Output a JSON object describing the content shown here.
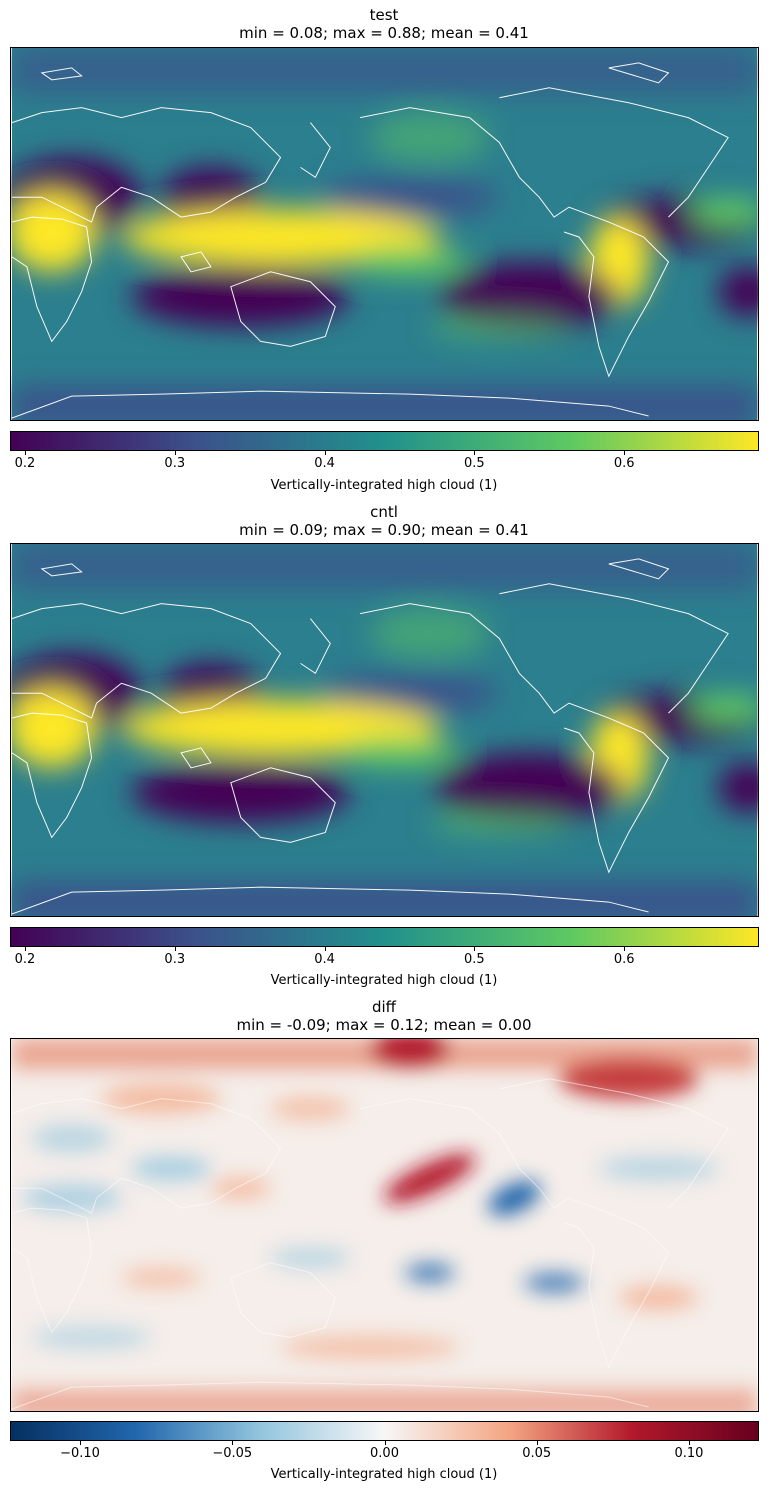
{
  "panels": [
    {
      "title": "test",
      "stats": "min = 0.08; max = 0.88; mean = 0.41",
      "colormap": "viridis",
      "colorbar": {
        "label": "Vertically-integrated high cloud (1)",
        "range": [
          0.19,
          0.69
        ],
        "ticks": [
          {
            "value": 0.2,
            "label": "0.2"
          },
          {
            "value": 0.3,
            "label": "0.3"
          },
          {
            "value": 0.4,
            "label": "0.4"
          },
          {
            "value": 0.5,
            "label": "0.5"
          },
          {
            "value": 0.6,
            "label": "0.6"
          }
        ]
      }
    },
    {
      "title": "cntl",
      "stats": "min = 0.09; max = 0.90; mean = 0.41",
      "colormap": "viridis",
      "colorbar": {
        "label": "Vertically-integrated high cloud (1)",
        "range": [
          0.19,
          0.69
        ],
        "ticks": [
          {
            "value": 0.2,
            "label": "0.2"
          },
          {
            "value": 0.3,
            "label": "0.3"
          },
          {
            "value": 0.4,
            "label": "0.4"
          },
          {
            "value": 0.5,
            "label": "0.5"
          },
          {
            "value": 0.6,
            "label": "0.6"
          }
        ]
      }
    },
    {
      "title": "diff",
      "stats": "min = -0.09; max = 0.12; mean = 0.00",
      "colormap": "RdBu_r",
      "colorbar": {
        "label": "Vertically-integrated high cloud (1)",
        "range": [
          -0.123,
          0.123
        ],
        "ticks": [
          {
            "value": -0.1,
            "label": "−0.10"
          },
          {
            "value": -0.05,
            "label": "−0.05"
          },
          {
            "value": 0.0,
            "label": "0.00"
          },
          {
            "value": 0.05,
            "label": "0.05"
          },
          {
            "value": 0.1,
            "label": "0.10"
          }
        ]
      }
    }
  ],
  "colors": {
    "viridis": [
      "#440154",
      "#3b528b",
      "#21918c",
      "#5ec962",
      "#fde725"
    ],
    "rdbu": [
      "#053061",
      "#2166ac",
      "#92c5de",
      "#f7f7f7",
      "#f4a582",
      "#b2182b",
      "#67001f"
    ],
    "coastline": "#ffffff"
  }
}
